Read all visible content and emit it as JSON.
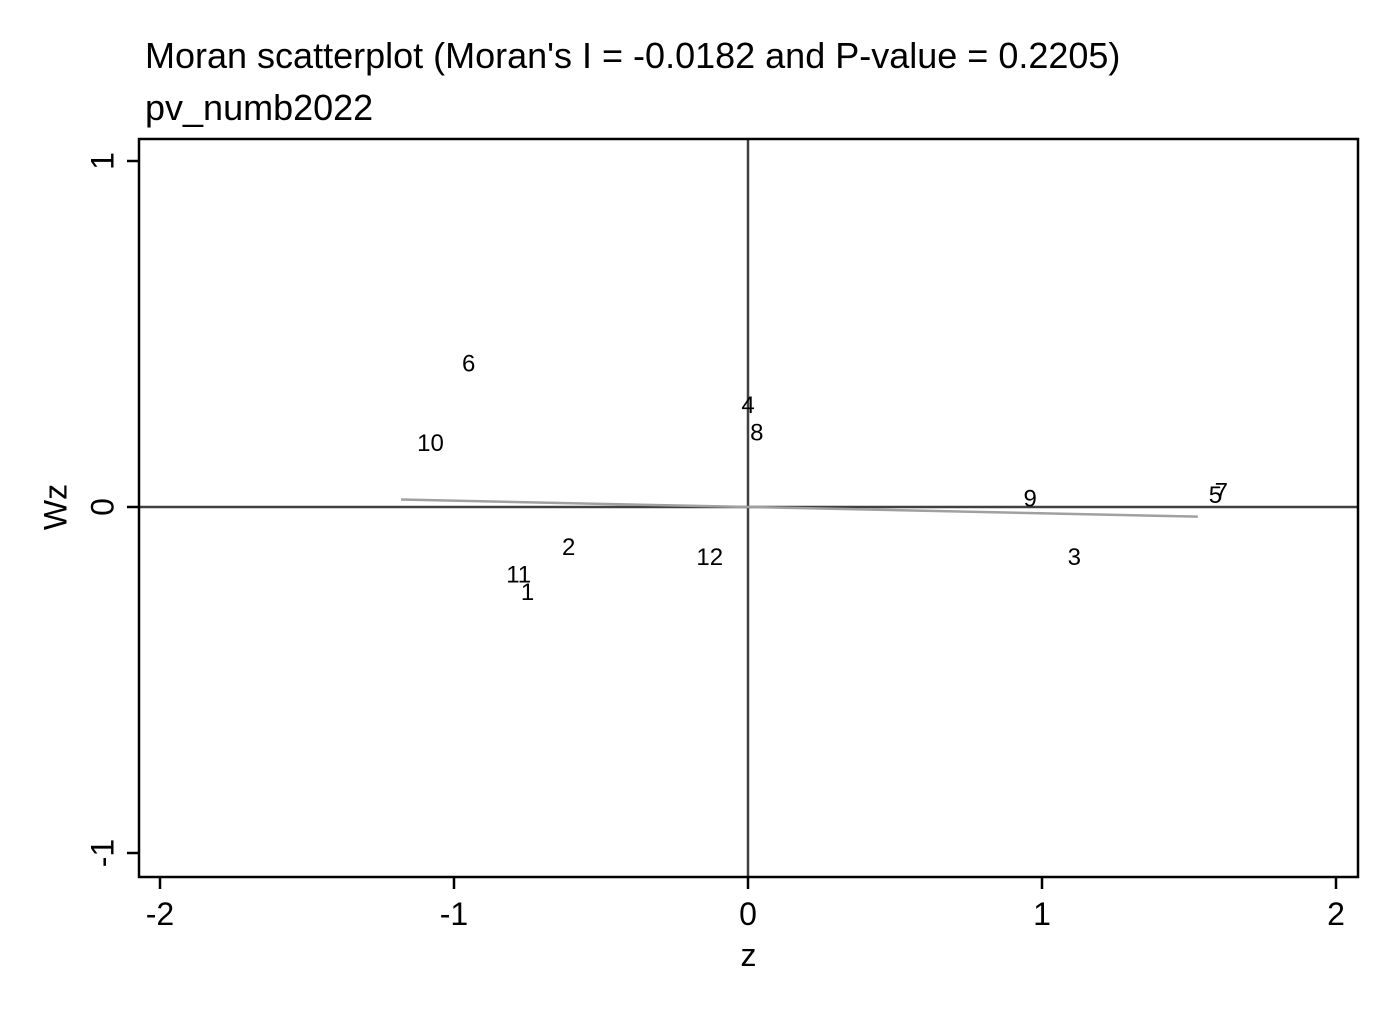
{
  "chart_data": {
    "type": "scatter",
    "title": "Moran scatterplot (Moran's I = -0.0182 and P-value = 0.2205)",
    "subtitle": "pv_numb2022",
    "xlabel": "z",
    "ylabel": "Wz",
    "xlim": [
      -2.07,
      2.07
    ],
    "ylim": [
      -1.07,
      1.07
    ],
    "xticks": [
      {
        "value": -2,
        "label": "-2"
      },
      {
        "value": -1,
        "label": "-1"
      },
      {
        "value": 0,
        "label": "0"
      },
      {
        "value": 1,
        "label": "1"
      },
      {
        "value": 2,
        "label": "2"
      }
    ],
    "yticks": [
      {
        "value": -1,
        "label": "-1"
      },
      {
        "value": 0,
        "label": "0"
      },
      {
        "value": 1,
        "label": "1"
      }
    ],
    "points": [
      {
        "label": "1",
        "x": -0.75,
        "y": -0.25
      },
      {
        "label": "2",
        "x": -0.61,
        "y": -0.12
      },
      {
        "label": "3",
        "x": 1.11,
        "y": -0.15
      },
      {
        "label": "4",
        "x": 0.0,
        "y": 0.29
      },
      {
        "label": "5",
        "x": 1.59,
        "y": 0.03
      },
      {
        "label": "6",
        "x": -0.95,
        "y": 0.41
      },
      {
        "label": "7",
        "x": 1.61,
        "y": 0.04
      },
      {
        "label": "8",
        "x": 0.03,
        "y": 0.21
      },
      {
        "label": "9",
        "x": 0.96,
        "y": 0.02
      },
      {
        "label": "10",
        "x": -1.08,
        "y": 0.18
      },
      {
        "label": "11",
        "x": -0.78,
        "y": -0.2
      },
      {
        "label": "12",
        "x": -0.13,
        "y": -0.15
      }
    ],
    "fit_line": {
      "x": [
        -1.18,
        1.53
      ],
      "y": [
        0.0215,
        -0.0278
      ]
    },
    "reference_lines": {
      "x": 0,
      "y": 0
    },
    "grid": false,
    "legend": "none",
    "colors": {
      "frame": "#000000",
      "reference": "#404040",
      "fit": "#a0a0a0",
      "text": "#000000"
    }
  }
}
